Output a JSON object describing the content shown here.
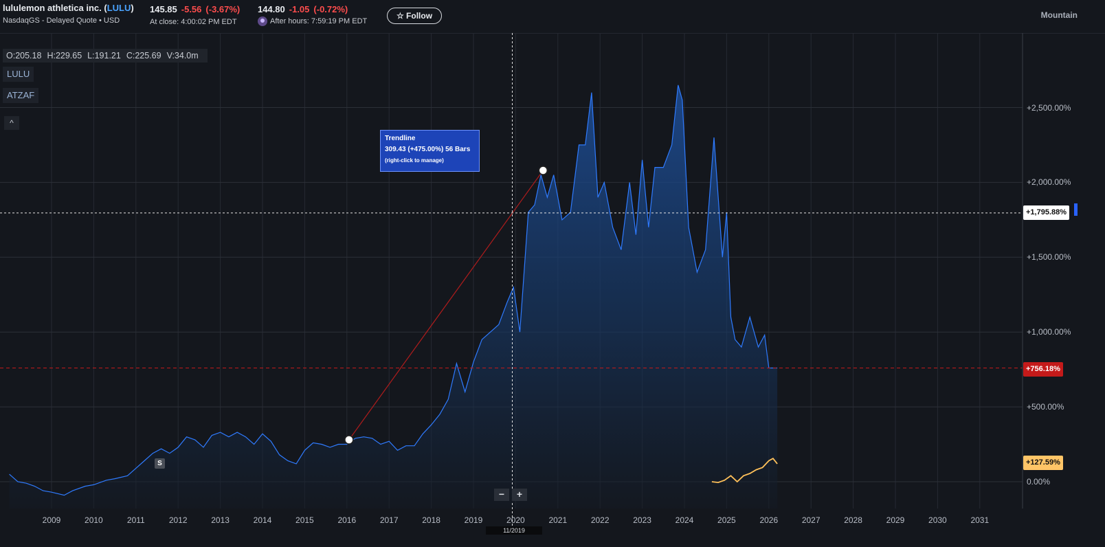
{
  "header": {
    "company_name": "lululemon athletica inc. (",
    "ticker": "LULU",
    "close_paren": ")",
    "exchange_line": "NasdaqGS - Delayed Quote • USD",
    "price": "145.85",
    "change": "-5.56",
    "change_pct": "(-3.67%)",
    "close_time": "At close: 4:00:02 PM EDT",
    "after_price": "144.80",
    "after_change": "-1.05",
    "after_change_pct": "(-0.72%)",
    "after_time": "After hours: 7:59:19 PM EDT",
    "follow_label": "☆ Follow",
    "timezone": "Mountain"
  },
  "ohlc": {
    "open": "O:205.18",
    "high": "H:229.65",
    "low": "L:191.21",
    "close": "C:225.69",
    "volume": "V:34.0m"
  },
  "symbols": [
    "LULU",
    "ATZAF"
  ],
  "collapse_icon": "^",
  "split_marker": "S",
  "tooltip": {
    "title": "Trendline",
    "detail": "309.43 (+475.00%) 56 Bars",
    "hint": "(right-click to manage)"
  },
  "zoom": {
    "minus": "−",
    "plus": "+"
  },
  "crosshair_date": "11/2019",
  "badges": {
    "crosshair": "+1,795.88%",
    "lulu": "+756.18%",
    "atzaf": "+127.59%"
  },
  "colors": {
    "lulu_line": "#2f7bff",
    "atzaf_line": "#ffc15a",
    "trendline": "#b01c1c",
    "lulu_badge": "#c41a1a",
    "atzaf_badge": "#ffc567"
  },
  "chart_data": {
    "type": "area",
    "y_unit": "percent change",
    "ylim": [
      -180,
      2900
    ],
    "y_ticks": [
      0,
      500,
      1000,
      1500,
      2000,
      2500
    ],
    "y_tick_labels": [
      "0.00%",
      "+500.00%",
      "+1,000.00%",
      "+1,500.00%",
      "+2,000.00%",
      "+2,500.00%"
    ],
    "xlim": [
      2008.0,
      2032.0
    ],
    "x_ticks": [
      2009,
      2010,
      2011,
      2012,
      2013,
      2014,
      2015,
      2016,
      2017,
      2018,
      2019,
      2020,
      2021,
      2022,
      2023,
      2024,
      2025,
      2026,
      2027,
      2028,
      2029,
      2030,
      2031
    ],
    "series": [
      {
        "name": "LULU",
        "x": [
          2008.0,
          2008.2,
          2008.4,
          2008.6,
          2008.8,
          2009.0,
          2009.3,
          2009.5,
          2009.8,
          2010.0,
          2010.3,
          2010.5,
          2010.8,
          2011.0,
          2011.2,
          2011.4,
          2011.6,
          2011.8,
          2012.0,
          2012.2,
          2012.4,
          2012.6,
          2012.8,
          2013.0,
          2013.2,
          2013.4,
          2013.6,
          2013.8,
          2014.0,
          2014.2,
          2014.4,
          2014.6,
          2014.8,
          2015.0,
          2015.2,
          2015.4,
          2015.6,
          2015.8,
          2016.0,
          2016.2,
          2016.4,
          2016.6,
          2016.8,
          2017.0,
          2017.2,
          2017.4,
          2017.6,
          2017.8,
          2018.0,
          2018.2,
          2018.4,
          2018.6,
          2018.8,
          2019.0,
          2019.2,
          2019.4,
          2019.6,
          2019.8,
          2019.95,
          2020.1,
          2020.3,
          2020.45,
          2020.6,
          2020.75,
          2020.9,
          2021.1,
          2021.3,
          2021.5,
          2021.65,
          2021.8,
          2021.95,
          2022.1,
          2022.3,
          2022.5,
          2022.7,
          2022.85,
          2023.0,
          2023.15,
          2023.3,
          2023.5,
          2023.7,
          2023.85,
          2023.95,
          2024.1,
          2024.3,
          2024.5,
          2024.7,
          2024.9,
          2025.0,
          2025.1,
          2025.2,
          2025.35,
          2025.55,
          2025.75,
          2025.9,
          2026.0,
          2026.1,
          2026.2
        ],
        "values": [
          50,
          0,
          -10,
          -30,
          -60,
          -70,
          -90,
          -60,
          -30,
          -20,
          10,
          20,
          40,
          90,
          140,
          190,
          220,
          190,
          230,
          300,
          280,
          230,
          310,
          330,
          300,
          330,
          300,
          250,
          320,
          270,
          180,
          140,
          120,
          210,
          260,
          250,
          230,
          250,
          250,
          290,
          300,
          290,
          250,
          270,
          210,
          240,
          240,
          320,
          380,
          450,
          550,
          790,
          600,
          800,
          950,
          1000,
          1050,
          1200,
          1300,
          1000,
          1800,
          1850,
          2050,
          1900,
          2050,
          1750,
          1800,
          2250,
          2250,
          2600,
          1900,
          2000,
          1700,
          1550,
          2000,
          1650,
          2150,
          1700,
          2100,
          2100,
          2250,
          2650,
          2550,
          1700,
          1400,
          1550,
          2300,
          1500,
          1800,
          1100,
          950,
          900,
          1100,
          900,
          980,
          760,
          760,
          760
        ]
      },
      {
        "name": "ATZAF",
        "x": [
          2024.65,
          2024.8,
          2024.95,
          2025.1,
          2025.25,
          2025.4,
          2025.55,
          2025.7,
          2025.85,
          2026.0,
          2026.1,
          2026.2
        ],
        "values": [
          0,
          -5,
          10,
          40,
          0,
          40,
          55,
          80,
          95,
          140,
          155,
          120
        ]
      }
    ],
    "trendline": {
      "x": [
        2016.05,
        2020.65
      ],
      "y": [
        280,
        2080
      ]
    },
    "crosshair": {
      "x": 2019.92,
      "y": 1795.88
    },
    "grid": true
  }
}
